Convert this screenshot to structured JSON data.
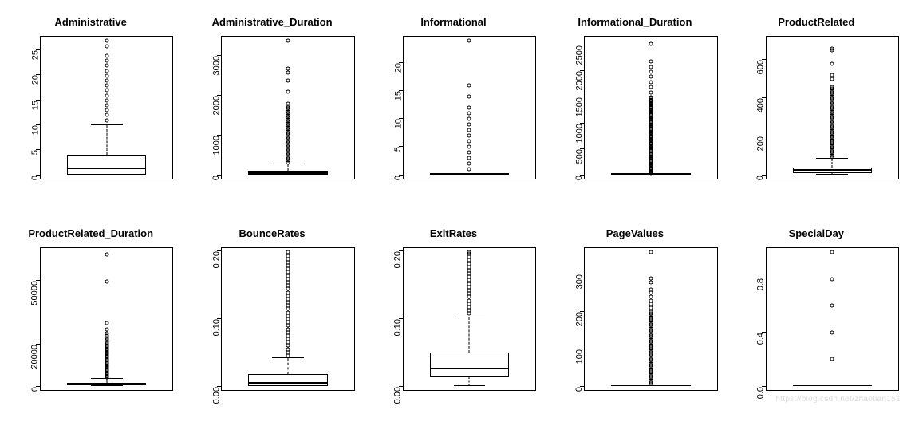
{
  "watermark": "https://blog.csdn.net/zhaotian151",
  "layout": {
    "rows": 2,
    "cols": 5
  },
  "font": {
    "title_size": 13,
    "tick_size": 11,
    "family": "Arial",
    "title_weight": "bold"
  },
  "colors": {
    "background": "#ffffff",
    "border": "#000000",
    "text": "#000000",
    "outlier_stroke": "#000000"
  },
  "charts": [
    {
      "title": "Administrative",
      "type": "boxplot",
      "ylim": [
        0,
        27
      ],
      "yticks": [
        0,
        5,
        10,
        15,
        20,
        25
      ],
      "q1": 0,
      "median": 1,
      "q3": 4,
      "whisker_low": 0,
      "whisker_high": 10,
      "outliers": [
        11,
        12,
        13,
        14,
        15,
        16,
        17,
        18,
        19,
        20,
        21,
        22,
        23,
        24,
        26,
        27
      ]
    },
    {
      "title": "Administrative_Duration",
      "type": "boxplot",
      "ylim": [
        0,
        3400
      ],
      "yticks": [
        0,
        1000,
        2000,
        3000
      ],
      "q1": 0,
      "median": 10,
      "q3": 100,
      "whisker_low": 0,
      "whisker_high": 250,
      "outliers": [
        300,
        350,
        400,
        450,
        500,
        550,
        600,
        650,
        700,
        750,
        800,
        850,
        900,
        950,
        1000,
        1050,
        1100,
        1150,
        1200,
        1250,
        1300,
        1350,
        1400,
        1450,
        1500,
        1550,
        1600,
        1650,
        1700,
        1750,
        1800,
        2100,
        2400,
        2600,
        2700,
        3400
      ]
    },
    {
      "title": "Informational",
      "type": "boxplot",
      "ylim": [
        0,
        24
      ],
      "yticks": [
        0,
        5,
        10,
        15,
        20
      ],
      "q1": 0,
      "median": 0,
      "q3": 0,
      "whisker_low": 0,
      "whisker_high": 0,
      "outliers": [
        1,
        2,
        3,
        4,
        5,
        6,
        7,
        8,
        9,
        10,
        11,
        12,
        14,
        16,
        24
      ]
    },
    {
      "title": "Informational_Duration",
      "type": "boxplot",
      "ylim": [
        0,
        2600
      ],
      "yticks": [
        0,
        500,
        1000,
        1500,
        2000,
        2500
      ],
      "q1": 0,
      "median": 0,
      "q3": 0,
      "whisker_low": 0,
      "whisker_high": 0,
      "outliers": [
        20,
        40,
        60,
        80,
        100,
        120,
        140,
        160,
        180,
        200,
        220,
        240,
        260,
        280,
        300,
        320,
        340,
        360,
        380,
        400,
        420,
        440,
        460,
        480,
        500,
        520,
        540,
        560,
        580,
        600,
        620,
        640,
        660,
        680,
        700,
        720,
        740,
        760,
        780,
        800,
        820,
        840,
        860,
        880,
        900,
        920,
        940,
        960,
        980,
        1000,
        1020,
        1040,
        1060,
        1080,
        1100,
        1120,
        1140,
        1160,
        1180,
        1200,
        1220,
        1240,
        1260,
        1280,
        1300,
        1320,
        1340,
        1360,
        1380,
        1400,
        1420,
        1440,
        1460,
        1480,
        1500,
        1600,
        1700,
        1800,
        1900,
        2000,
        2100,
        2200,
        2550
      ]
    },
    {
      "title": "ProductRelated",
      "type": "boxplot",
      "ylim": [
        0,
        700
      ],
      "yticks": [
        0,
        200,
        400,
        600
      ],
      "q1": 8,
      "median": 18,
      "q3": 38,
      "whisker_low": 0,
      "whisker_high": 82,
      "outliers": [
        90,
        100,
        110,
        120,
        130,
        140,
        150,
        160,
        170,
        180,
        190,
        200,
        210,
        220,
        230,
        240,
        250,
        260,
        270,
        280,
        290,
        300,
        310,
        320,
        330,
        340,
        350,
        360,
        370,
        380,
        390,
        400,
        410,
        420,
        430,
        440,
        450,
        460,
        500,
        520,
        580,
        650,
        660
      ]
    },
    {
      "title": "ProductRelated_Duration",
      "type": "boxplot",
      "ylim": [
        0,
        64000
      ],
      "yticks": [
        0,
        20000,
        50000
      ],
      "ytick_labels": [
        "0",
        "20000",
        "50000"
      ],
      "q1": 200,
      "median": 600,
      "q3": 1500,
      "whisker_low": 0,
      "whisker_high": 3400,
      "outliers": [
        4000,
        4500,
        5000,
        5500,
        6000,
        6500,
        7000,
        7500,
        8000,
        8500,
        9000,
        9500,
        10000,
        10500,
        11000,
        11500,
        12000,
        12500,
        13000,
        13500,
        14000,
        14500,
        15000,
        15500,
        16000,
        16500,
        17000,
        17500,
        18000,
        18500,
        19000,
        19500,
        20000,
        21000,
        22000,
        23000,
        24000,
        25000,
        27000,
        30000,
        50000,
        63000
      ]
    },
    {
      "title": "BounceRates",
      "type": "boxplot",
      "ylim": [
        0,
        0.2
      ],
      "yticks": [
        0.0,
        0.1,
        0.2
      ],
      "ytick_labels": [
        "0.00",
        "0.10",
        "0.20"
      ],
      "q1": 0.0,
      "median": 0.003,
      "q3": 0.017,
      "whisker_low": 0,
      "whisker_high": 0.042,
      "outliers": [
        0.045,
        0.05,
        0.055,
        0.06,
        0.065,
        0.07,
        0.075,
        0.08,
        0.085,
        0.09,
        0.095,
        0.1,
        0.105,
        0.11,
        0.115,
        0.12,
        0.125,
        0.13,
        0.135,
        0.14,
        0.145,
        0.15,
        0.155,
        0.16,
        0.165,
        0.17,
        0.175,
        0.18,
        0.185,
        0.19,
        0.195,
        0.2
      ]
    },
    {
      "title": "ExitRates",
      "type": "boxplot",
      "ylim": [
        0,
        0.2
      ],
      "yticks": [
        0.0,
        0.1,
        0.2
      ],
      "ytick_labels": [
        "0.00",
        "0.10",
        "0.20"
      ],
      "q1": 0.014,
      "median": 0.025,
      "q3": 0.05,
      "whisker_low": 0.0,
      "whisker_high": 0.103,
      "outliers": [
        0.108,
        0.113,
        0.118,
        0.123,
        0.128,
        0.133,
        0.138,
        0.143,
        0.148,
        0.153,
        0.158,
        0.163,
        0.168,
        0.173,
        0.178,
        0.183,
        0.188,
        0.193,
        0.198,
        0.2
      ]
    },
    {
      "title": "PageValues",
      "type": "boxplot",
      "ylim": [
        0,
        360
      ],
      "yticks": [
        0,
        100,
        200,
        300
      ],
      "q1": 0,
      "median": 0,
      "q3": 0,
      "whisker_low": 0,
      "whisker_high": 0,
      "outliers": [
        5,
        10,
        15,
        20,
        25,
        30,
        35,
        40,
        45,
        50,
        55,
        60,
        65,
        70,
        75,
        80,
        85,
        90,
        95,
        100,
        105,
        110,
        115,
        120,
        125,
        130,
        135,
        140,
        145,
        150,
        155,
        160,
        165,
        170,
        175,
        180,
        185,
        190,
        195,
        200,
        210,
        220,
        230,
        240,
        250,
        260,
        280,
        290,
        360
      ]
    },
    {
      "title": "SpecialDay",
      "type": "boxplot",
      "ylim": [
        0,
        1.0
      ],
      "yticks": [
        0.0,
        0.4,
        0.8
      ],
      "ytick_labels": [
        "0.0",
        "0.4",
        "0.8"
      ],
      "q1": 0,
      "median": 0,
      "q3": 0,
      "whisker_low": 0,
      "whisker_high": 0,
      "outliers": [
        0.2,
        0.4,
        0.6,
        0.8,
        1.0
      ]
    }
  ]
}
